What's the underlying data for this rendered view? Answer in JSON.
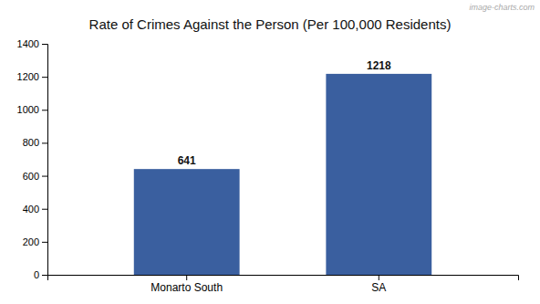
{
  "chart_data": {
    "type": "bar",
    "title": "Rate of Crimes Against the Person (Per 100,000 Residents)",
    "categories": [
      "Monarto South",
      "SA"
    ],
    "values": [
      641,
      1218
    ],
    "color": "#3a5f9f",
    "ylim": [
      0,
      1400
    ],
    "yticks": [
      0,
      200,
      400,
      600,
      800,
      1000,
      1200,
      1400
    ],
    "grid": false,
    "data_labels": true,
    "annotations": [
      "image-charts.com"
    ]
  }
}
